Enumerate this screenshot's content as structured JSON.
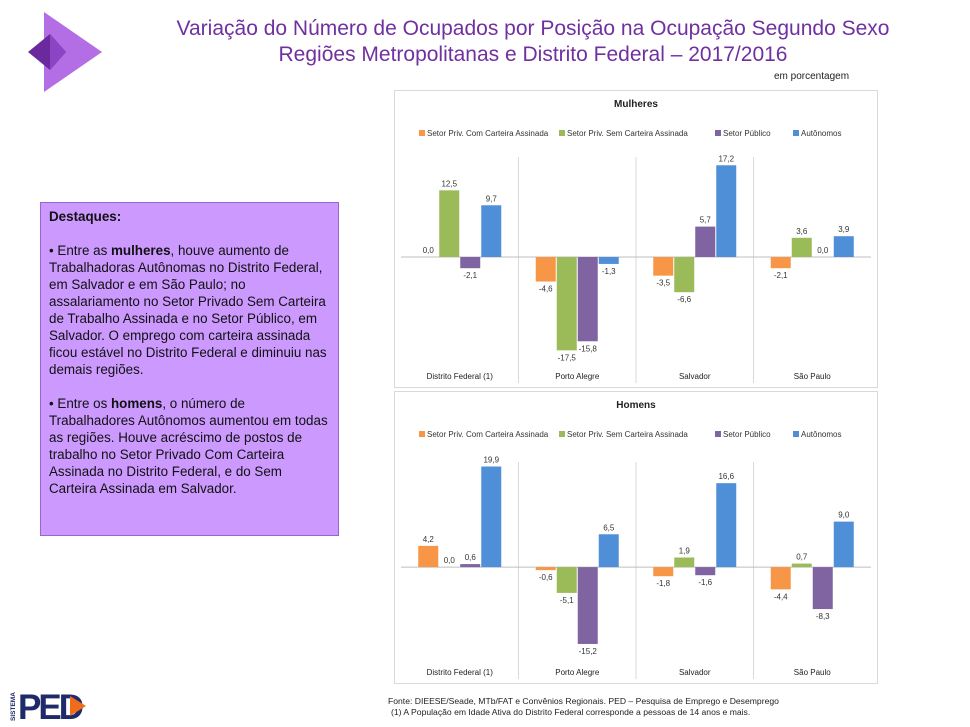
{
  "title_line1": "Variação do Número de Ocupados por Posição na Ocupação Segundo Sexo",
  "title_line2": "Regiões Metropolitanas e Distrito Federal – 2017/2016",
  "unit_label": "em porcentagem",
  "highlights": {
    "heading": "Destaques:",
    "women_prefix": "• Entre as ",
    "women_bold": "mulheres",
    "women_text": ", houve aumento de Trabalhadoras Autônomas no Distrito Federal, em Salvador e em São Paulo; no assalariamento no Setor Privado Sem Carteira de Trabalho Assinada e no Setor Público, em Salvador. O emprego com carteira assinada ficou estável no Distrito Federal e diminuiu nas demais regiões.",
    "men_prefix": "• Entre os ",
    "men_bold": "homens",
    "men_text": ", o número de Trabalhadores Autônomos aumentou em todas as regiões. Houve acréscimo de postos de trabalho no Setor Privado Com Carteira Assinada no Distrito Federal, e do Sem Carteira Assinada em Salvador."
  },
  "chart_data": [
    {
      "type": "bar",
      "title": "Mulheres",
      "categories": [
        "Distrito Federal (1)",
        "Porto Alegre",
        "Salvador",
        "São Paulo"
      ],
      "series": [
        {
          "name": "Setor Priv. Com Carteira Assinada",
          "color": "#f79646",
          "values": [
            0.0,
            -4.6,
            -3.5,
            -2.1
          ]
        },
        {
          "name": "Setor Priv. Sem Carteira Assinada",
          "color": "#9bbb59",
          "values": [
            12.5,
            -17.5,
            -6.6,
            3.6
          ]
        },
        {
          "name": "Setor Público",
          "color": "#8064a2",
          "values": [
            -2.1,
            -15.8,
            5.7,
            0.0
          ]
        },
        {
          "name": "Autônomos",
          "color": "#4f8fd8",
          "values": [
            9.7,
            -1.3,
            17.2,
            3.9
          ]
        }
      ],
      "ylim": [
        -18,
        18
      ],
      "legend": "top"
    },
    {
      "type": "bar",
      "title": "Homens",
      "categories": [
        "Distrito Federal (1)",
        "Porto Alegre",
        "Salvador",
        "São Paulo"
      ],
      "series": [
        {
          "name": "Setor Priv. Com Carteira Assinada",
          "color": "#f79646",
          "values": [
            4.2,
            -0.6,
            -1.8,
            -4.4
          ]
        },
        {
          "name": "Setor Priv. Sem Carteira Assinada",
          "color": "#9bbb59",
          "values": [
            0.0,
            -5.1,
            1.9,
            0.7
          ]
        },
        {
          "name": "Setor Público",
          "color": "#8064a2",
          "values": [
            0.6,
            -15.2,
            -1.6,
            -8.3
          ]
        },
        {
          "name": "Autônomos",
          "color": "#4f8fd8",
          "values": [
            19.9,
            6.5,
            16.6,
            9.0
          ]
        }
      ],
      "ylim": [
        -16,
        20
      ],
      "legend": "top"
    }
  ],
  "logo": {
    "vertical_text": "SISTEMA",
    "text": "PED"
  },
  "source_line1": "Fonte: DIEESE/Seade, MTb/FAT e Convênios Regionais. PED – Pesquisa de Emprego e Desemprego",
  "source_line2": "(1) A População em Idade Ativa do Distrito Federal corresponde a pessoas de 14 anos e mais."
}
